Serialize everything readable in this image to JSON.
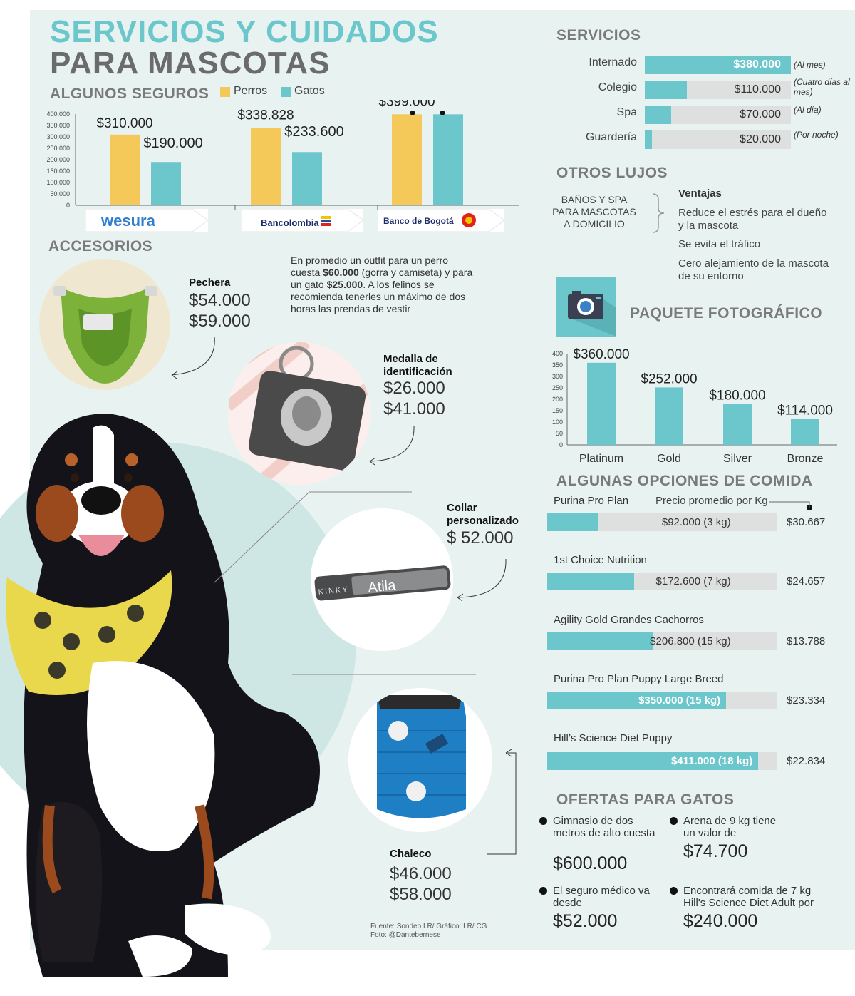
{
  "header": {
    "title_line1": "SERVICIOS Y CUIDADOS",
    "title_line2": "PARA MASCOTAS"
  },
  "insurance": {
    "title": "ALGUNOS SEGUROS",
    "legend": {
      "dogs": "Perros",
      "cats": "Gatos"
    },
    "logos": [
      "wesura",
      "Bancolombia",
      "Banco de Bogotá"
    ],
    "colors": {
      "dogs": "#f5c85a",
      "cats": "#6cc7cc"
    }
  },
  "services": {
    "title": "SERVICIOS",
    "rows": [
      {
        "label": "Internado",
        "value": "$380.000",
        "note": "(Al mes)",
        "fraction": 1.0
      },
      {
        "label": "Colegio",
        "value": "$110.000",
        "note": "(Cuatro días al mes)",
        "fraction": 0.29
      },
      {
        "label": "Spa",
        "value": "$70.000",
        "note": "(Al día)",
        "fraction": 0.18
      },
      {
        "label": "Guardería",
        "value": "$20.000",
        "note": "(Por noche)",
        "fraction": 0.05
      }
    ]
  },
  "luxuries": {
    "title": "OTROS LUJOS",
    "service": "BAÑOS Y SPA PARA MASCOTAS A DOMICILIO",
    "advantages_title": "Ventajas",
    "advantages": [
      "Reduce el estrés para el dueño y la mascota",
      "Se evita el tráfico",
      "Cero alejamiento de la mascota de su entorno"
    ]
  },
  "photo": {
    "title": "PAQUETE FOTOGRÁFICO",
    "camera_icon": "camera-icon"
  },
  "accessories": {
    "title": "ACCESORIOS",
    "intro_parts": [
      "En promedio un outfit para un perro cuesta ",
      "$60.000",
      " (gorra y camiseta) y para un gato ",
      "$25.000",
      ". A los felinos se recomienda tenerles un máximo de dos horas las prendas de vestir"
    ],
    "items": [
      {
        "name": "Pechera",
        "price1": "$54.000",
        "price2": "$59.000"
      },
      {
        "name": "Medalla de identificación",
        "price1": "$26.000",
        "price2": "$41.000"
      },
      {
        "name": "Collar personalizado",
        "price1": "$ 52.000",
        "engraving_brand": "KINKY",
        "engraving_name": "Atila"
      },
      {
        "name": "Chaleco",
        "price1": "$46.000",
        "price2": "$58.000"
      }
    ]
  },
  "food": {
    "title": "ALGUNAS OPCIONES DE COMIDA",
    "column_header": "Precio promedio por Kg",
    "items": [
      {
        "name": "Purina Pro Plan",
        "bar_label": "$92.000 (3 kg)",
        "per_kg": "$30.667",
        "fraction": 0.22,
        "bold": false
      },
      {
        "name": "1st Choice Nutrition",
        "bar_label": "$172.600 (7 kg)",
        "per_kg": "$24.657",
        "fraction": 0.38,
        "bold": false
      },
      {
        "name": "Agility Gold Grandes Cachorros",
        "bar_label": "$206.800 (15 kg)",
        "per_kg": "$13.788",
        "fraction": 0.46,
        "bold": false
      },
      {
        "name": "Purina Pro Plan Puppy Large Breed",
        "bar_label": "$350.000 (15 kg)",
        "per_kg": "$23.334",
        "fraction": 0.78,
        "bold": true
      },
      {
        "name": "Hill’s Science Diet Puppy",
        "bar_label": "$411.000 (18 kg)",
        "per_kg": "$22.834",
        "fraction": 0.92,
        "bold": true
      }
    ]
  },
  "cat_offers": {
    "title": "OFERTAS PARA GATOS",
    "items": [
      {
        "text": "Gimnasio de dos metros de alto cuesta",
        "price": "$600.000"
      },
      {
        "text": "Arena de 9 kg tiene un valor de",
        "price": "$74.700"
      },
      {
        "text": "El seguro médico va desde",
        "price": "$52.000"
      },
      {
        "text": "Encontrará comida de 7 kg Hill's Science Diet Adult por",
        "price": "$240.000"
      }
    ]
  },
  "footer": {
    "source": "Fuente: Sondeo LR/ Gráfico: LR/ CG",
    "photo": "Foto: @Dantebernese"
  },
  "chart_data": [
    {
      "type": "bar",
      "title": "ALGUNOS SEGUROS",
      "categories": [
        "wesura",
        "Bancolombia",
        "Banco de Bogotá"
      ],
      "series": [
        {
          "name": "Perros",
          "values": [
            310000,
            338828,
            399000
          ],
          "labels": [
            "$310.000",
            "$338.828",
            "$399.000"
          ]
        },
        {
          "name": "Gatos",
          "values": [
            190000,
            233600,
            399000
          ],
          "labels": [
            "$190.000",
            "$233.600",
            "$399.000"
          ]
        }
      ],
      "yticks": [
        "400.000",
        "350.000",
        "300.000",
        "250.000",
        "200.000",
        "150.000",
        "100.000",
        "50.000",
        "0"
      ],
      "ylim": [
        0,
        400000
      ]
    },
    {
      "type": "bar",
      "title": "PAQUETE FOTOGRÁFICO",
      "categories": [
        "Platinum",
        "Gold",
        "Silver",
        "Bronze"
      ],
      "values": [
        360000,
        252000,
        180000,
        114000
      ],
      "labels": [
        "$360.000",
        "$252.000",
        "$180.000",
        "$114.000"
      ],
      "yticks": [
        "400",
        "350",
        "300",
        "250",
        "200",
        "150",
        "100",
        "50",
        "0"
      ],
      "ylim": [
        0,
        400000
      ]
    }
  ]
}
